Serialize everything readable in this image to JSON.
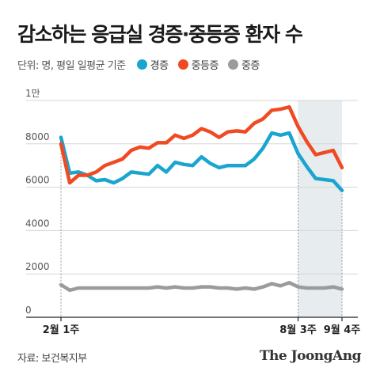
{
  "title": "감소하는 응급실 경증·중등증 환자 수",
  "legend": {
    "unit_label": "단위: 명, 평일 일평균 기준",
    "items": [
      {
        "label": "경증",
        "color": "#1aa5cf"
      },
      {
        "label": "중등증",
        "color": "#f04a23"
      },
      {
        "label": "중증",
        "color": "#9b9b9b"
      }
    ]
  },
  "source": "자료: 보건복지부",
  "brand": "The JoongAng",
  "chart_data": {
    "type": "line",
    "title": "감소하는 응급실 경증·중등증 환자 수",
    "ylim": [
      0,
      10000
    ],
    "y_ticks": [
      {
        "value": 0,
        "label": "0"
      },
      {
        "value": 2000,
        "label": "2000"
      },
      {
        "value": 4000,
        "label": "4000"
      },
      {
        "value": 6000,
        "label": "6000"
      },
      {
        "value": 8000,
        "label": "8000"
      },
      {
        "value": 10000,
        "label": "1만"
      }
    ],
    "x_tick_labels": [
      {
        "index": 0,
        "label": "2월 1주"
      },
      {
        "index": 27,
        "label": "8월 3주"
      },
      {
        "index": 32,
        "label": "9월 4주"
      }
    ],
    "highlight_range": [
      27,
      32
    ],
    "grid": true,
    "legend_position": "top-left",
    "series": [
      {
        "name": "경증",
        "color": "#1aa5cf",
        "values": [
          8300,
          6650,
          6700,
          6550,
          6300,
          6350,
          6200,
          6400,
          6700,
          6650,
          6600,
          7000,
          6700,
          7150,
          7050,
          7000,
          7400,
          7100,
          6900,
          7000,
          7000,
          7000,
          7300,
          7800,
          8500,
          8400,
          8500,
          7550,
          6950,
          6400,
          6350,
          6300,
          5850
        ]
      },
      {
        "name": "중등증",
        "color": "#f04a23",
        "values": [
          8000,
          6200,
          6550,
          6550,
          6700,
          7000,
          7150,
          7300,
          7700,
          7850,
          7800,
          8050,
          8050,
          8400,
          8250,
          8400,
          8700,
          8550,
          8300,
          8550,
          8600,
          8550,
          8950,
          9150,
          9550,
          9600,
          9700,
          8800,
          8100,
          7500,
          7600,
          7700,
          6900
        ]
      },
      {
        "name": "중증",
        "color": "#9b9b9b",
        "values": [
          1500,
          1250,
          1350,
          1350,
          1350,
          1350,
          1350,
          1350,
          1350,
          1350,
          1350,
          1400,
          1350,
          1400,
          1350,
          1350,
          1400,
          1400,
          1350,
          1350,
          1300,
          1350,
          1300,
          1400,
          1550,
          1450,
          1600,
          1400,
          1350,
          1350,
          1350,
          1400,
          1300
        ]
      }
    ]
  }
}
